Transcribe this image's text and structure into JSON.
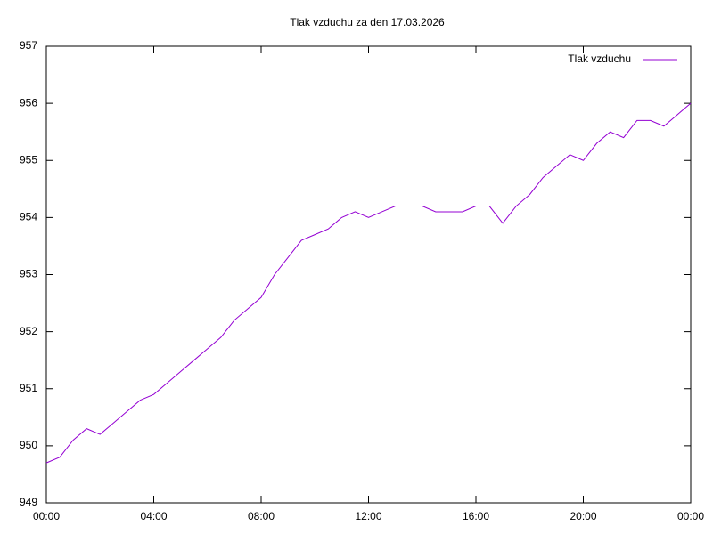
{
  "chart_data": {
    "type": "line",
    "title": "Tlak vzduchu za den 17.03.2026",
    "x": [
      0,
      0.5,
      1,
      1.5,
      2,
      2.5,
      3,
      3.5,
      4,
      4.5,
      5,
      5.5,
      6,
      6.5,
      7,
      7.5,
      8,
      8.5,
      9,
      9.5,
      10,
      10.5,
      11,
      11.5,
      12,
      12.5,
      13,
      13.5,
      14,
      14.5,
      15,
      15.5,
      16,
      16.5,
      17,
      17.5,
      18,
      18.5,
      19,
      19.5,
      20,
      20.5,
      21,
      21.5,
      22,
      22.5,
      23,
      23.5,
      24
    ],
    "series": [
      {
        "name": "Tlak vzduchu",
        "color": "#9400d3",
        "values": [
          949.7,
          949.8,
          950.1,
          950.3,
          950.2,
          950.4,
          950.6,
          950.8,
          950.9,
          951.1,
          951.3,
          951.5,
          951.7,
          951.9,
          952.2,
          952.4,
          952.6,
          953.0,
          953.3,
          953.6,
          953.7,
          953.8,
          954.0,
          954.1,
          954.0,
          954.1,
          954.2,
          954.2,
          954.2,
          954.1,
          954.1,
          954.1,
          954.2,
          954.2,
          953.9,
          954.2,
          954.4,
          954.7,
          954.9,
          955.1,
          955.0,
          955.3,
          955.5,
          955.4,
          955.7,
          955.7,
          955.6,
          955.8,
          956.0
        ]
      }
    ],
    "xlim": [
      0,
      24
    ],
    "xticks": [
      {
        "value": 0,
        "label": "00:00"
      },
      {
        "value": 4,
        "label": "04:00"
      },
      {
        "value": 8,
        "label": "08:00"
      },
      {
        "value": 12,
        "label": "12:00"
      },
      {
        "value": 16,
        "label": "16:00"
      },
      {
        "value": 20,
        "label": "20:00"
      },
      {
        "value": 24,
        "label": "00:00"
      }
    ],
    "ylim": [
      949,
      957
    ],
    "yticks": [
      949,
      950,
      951,
      952,
      953,
      954,
      955,
      956,
      957
    ],
    "grid": false,
    "legend": "top-right"
  }
}
